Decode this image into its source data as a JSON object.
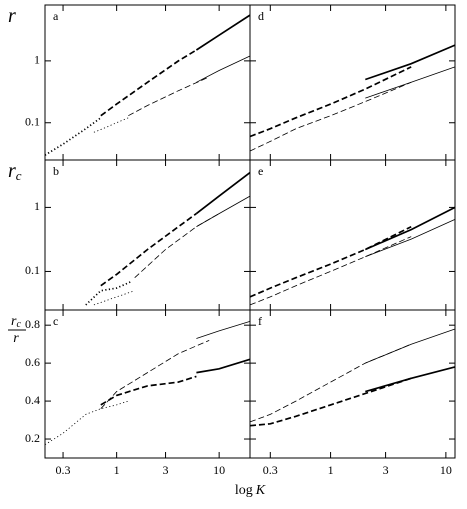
{
  "xlabel": {
    "text": "log",
    "var": "K"
  },
  "chart_data": [
    {
      "type": "line",
      "label": "a",
      "ylabel": {
        "main": "r"
      },
      "yscale": "log",
      "xscale": "log",
      "xlim": [
        0.2,
        20
      ],
      "ylim": [
        0.025,
        8
      ],
      "yticks": [
        0.1,
        1
      ],
      "series": [
        {
          "color": "#000",
          "width": "thick",
          "dash": "dot",
          "x": [
            0.2,
            0.3,
            0.5,
            0.7
          ],
          "values": [
            0.03,
            0.045,
            0.08,
            0.12
          ]
        },
        {
          "color": "#000",
          "width": "thick",
          "dash": "dash",
          "x": [
            0.7,
            1,
            2,
            4,
            6
          ],
          "values": [
            0.13,
            0.2,
            0.45,
            1.0,
            1.5
          ]
        },
        {
          "color": "#000",
          "width": "thick",
          "dash": "solid",
          "x": [
            6,
            10,
            20
          ],
          "values": [
            1.5,
            2.6,
            5.5
          ]
        },
        {
          "color": "#000",
          "width": "thin",
          "dash": "dot",
          "x": [
            0.6,
            0.8,
            1,
            1.3
          ],
          "values": [
            0.07,
            0.085,
            0.1,
            0.12
          ]
        },
        {
          "color": "#000",
          "width": "thin",
          "dash": "dash",
          "x": [
            1.3,
            2,
            4,
            8
          ],
          "values": [
            0.13,
            0.19,
            0.33,
            0.55
          ]
        },
        {
          "color": "#000",
          "width": "thin",
          "dash": "solid",
          "x": [
            6,
            10,
            20
          ],
          "values": [
            0.45,
            0.7,
            1.2
          ]
        }
      ]
    },
    {
      "type": "line",
      "label": "b",
      "ylabel": {
        "main": "r",
        "sub": "c"
      },
      "yscale": "log",
      "xscale": "log",
      "xlim": [
        0.2,
        20
      ],
      "ylim": [
        0.025,
        5.5
      ],
      "yticks": [
        0.1,
        1
      ],
      "series": [
        {
          "color": "#000",
          "width": "thick",
          "dash": "dot",
          "x": [
            0.5,
            0.7,
            1,
            1.4
          ],
          "values": [
            0.03,
            0.05,
            0.055,
            0.07
          ]
        },
        {
          "color": "#000",
          "width": "thick",
          "dash": "dash",
          "x": [
            0.7,
            1,
            2,
            4,
            6
          ],
          "values": [
            0.06,
            0.09,
            0.22,
            0.5,
            0.8
          ]
        },
        {
          "color": "#000",
          "width": "thick",
          "dash": "solid",
          "x": [
            6,
            10,
            20
          ],
          "values": [
            0.8,
            1.5,
            3.5
          ]
        },
        {
          "color": "#000",
          "width": "thin",
          "dash": "dot",
          "x": [
            0.6,
            1,
            1.5
          ],
          "values": [
            0.03,
            0.04,
            0.05
          ]
        },
        {
          "color": "#000",
          "width": "thin",
          "dash": "dash",
          "x": [
            1.5,
            3,
            6,
            10
          ],
          "values": [
            0.08,
            0.22,
            0.5,
            0.8
          ]
        },
        {
          "color": "#000",
          "width": "thin",
          "dash": "solid",
          "x": [
            6,
            10,
            20
          ],
          "values": [
            0.5,
            0.8,
            1.5
          ]
        }
      ]
    },
    {
      "type": "line",
      "label": "c",
      "ylabel": {
        "num": "r",
        "num_sub": "c",
        "den": "r"
      },
      "yscale": "linear",
      "xscale": "log",
      "xlim": [
        0.2,
        20
      ],
      "ylim": [
        0.1,
        0.88
      ],
      "yticks": [
        0.2,
        0.4,
        0.6,
        0.8
      ],
      "xticks": [
        0.3,
        1,
        3,
        10
      ],
      "series": [
        {
          "color": "#000",
          "width": "thin",
          "dash": "dot",
          "x": [
            0.2,
            0.3,
            0.5,
            0.7,
            1,
            1.3
          ],
          "values": [
            0.17,
            0.23,
            0.33,
            0.36,
            0.38,
            0.4
          ]
        },
        {
          "color": "#000",
          "width": "thick",
          "dash": "dash",
          "x": [
            0.7,
            1,
            2,
            4,
            6
          ],
          "values": [
            0.38,
            0.43,
            0.48,
            0.5,
            0.53
          ]
        },
        {
          "color": "#000",
          "width": "thick",
          "dash": "solid",
          "x": [
            6,
            10,
            20
          ],
          "values": [
            0.55,
            0.57,
            0.62
          ]
        },
        {
          "color": "#000",
          "width": "thin",
          "dash": "dash",
          "x": [
            0.7,
            1,
            2,
            4,
            8
          ],
          "values": [
            0.36,
            0.45,
            0.55,
            0.65,
            0.72
          ]
        },
        {
          "color": "#000",
          "width": "thin",
          "dash": "solid",
          "x": [
            6,
            10,
            20
          ],
          "values": [
            0.73,
            0.77,
            0.82
          ]
        }
      ]
    },
    {
      "type": "line",
      "label": "d",
      "yscale": "log",
      "xscale": "log",
      "xlim": [
        0.2,
        12
      ],
      "ylim": [
        0.025,
        8
      ],
      "series": [
        {
          "color": "#000",
          "width": "thick",
          "dash": "dash",
          "x": [
            0.2,
            0.3,
            0.5,
            1,
            2,
            5
          ],
          "values": [
            0.06,
            0.08,
            0.12,
            0.2,
            0.35,
            0.8
          ]
        },
        {
          "color": "#000",
          "width": "thick",
          "dash": "solid",
          "x": [
            2,
            5,
            12
          ],
          "values": [
            0.5,
            0.9,
            1.8
          ]
        },
        {
          "color": "#000",
          "width": "thin",
          "dash": "dash",
          "x": [
            0.2,
            0.3,
            0.5,
            1,
            2,
            5
          ],
          "values": [
            0.035,
            0.05,
            0.08,
            0.13,
            0.22,
            0.45
          ]
        },
        {
          "color": "#000",
          "width": "thin",
          "dash": "solid",
          "x": [
            2,
            5,
            12
          ],
          "values": [
            0.25,
            0.45,
            0.8
          ]
        }
      ]
    },
    {
      "type": "line",
      "label": "e",
      "yscale": "log",
      "xscale": "log",
      "xlim": [
        0.2,
        12
      ],
      "ylim": [
        0.025,
        5.5
      ],
      "series": [
        {
          "color": "#000",
          "width": "thick",
          "dash": "dash",
          "x": [
            0.2,
            0.3,
            0.5,
            1,
            2,
            5
          ],
          "values": [
            0.04,
            0.055,
            0.08,
            0.13,
            0.22,
            0.5
          ]
        },
        {
          "color": "#000",
          "width": "thick",
          "dash": "solid",
          "x": [
            2,
            5,
            12
          ],
          "values": [
            0.22,
            0.45,
            1.0
          ]
        },
        {
          "color": "#000",
          "width": "thin",
          "dash": "dash",
          "x": [
            0.2,
            0.3,
            0.5,
            1,
            2,
            5
          ],
          "values": [
            0.03,
            0.04,
            0.06,
            0.1,
            0.17,
            0.35
          ]
        },
        {
          "color": "#000",
          "width": "thin",
          "dash": "solid",
          "x": [
            2,
            5,
            12
          ],
          "values": [
            0.17,
            0.32,
            0.65
          ]
        }
      ]
    },
    {
      "type": "line",
      "label": "f",
      "yscale": "linear",
      "xscale": "log",
      "xlim": [
        0.2,
        12
      ],
      "ylim": [
        0.1,
        0.88
      ],
      "xticks": [
        0.3,
        1,
        3,
        10
      ],
      "series": [
        {
          "color": "#000",
          "width": "thick",
          "dash": "dash",
          "x": [
            0.2,
            0.3,
            0.5,
            1,
            2,
            5
          ],
          "values": [
            0.27,
            0.28,
            0.32,
            0.38,
            0.44,
            0.52
          ]
        },
        {
          "color": "#000",
          "width": "thick",
          "dash": "solid",
          "x": [
            2,
            5,
            12
          ],
          "values": [
            0.45,
            0.52,
            0.58
          ]
        },
        {
          "color": "#000",
          "width": "thin",
          "dash": "dash",
          "x": [
            0.2,
            0.3,
            0.5,
            1,
            2,
            5
          ],
          "values": [
            0.29,
            0.33,
            0.4,
            0.5,
            0.6,
            0.7
          ]
        },
        {
          "color": "#000",
          "width": "thin",
          "dash": "solid",
          "x": [
            2,
            5,
            12
          ],
          "values": [
            0.6,
            0.7,
            0.78
          ]
        }
      ]
    }
  ]
}
